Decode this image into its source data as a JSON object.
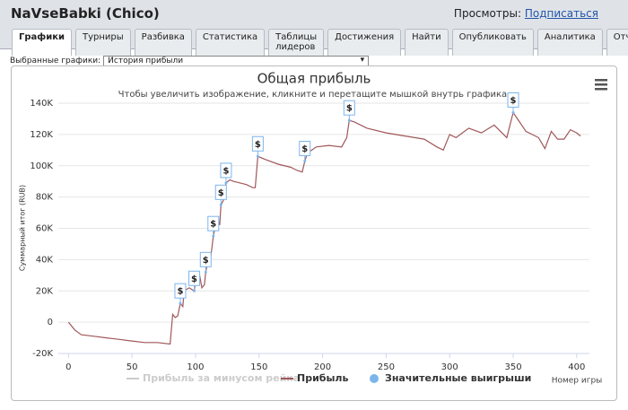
{
  "header": {
    "title": "NaVseBabki (Chico)",
    "views_label": "Просмотры:",
    "subscribe_link": "Подписаться"
  },
  "tabs": [
    "Графики",
    "Турниры",
    "Разбивка",
    "Статистика",
    "Таблицы лидеров",
    "Достижения",
    "Найти",
    "Опубликовать",
    "Аналитика",
    "Отчёты"
  ],
  "selector": {
    "label": "Выбранные графики:",
    "value": "История прибыли"
  },
  "chart_data": {
    "type": "line",
    "title": "Общая прибыль",
    "subtitle": "Чтобы увеличить изображение, кликните и перетащите мышкой внутрь графика.",
    "y_label": "Суммарный итог (RUB)",
    "x_label": "Номер игры",
    "xlim": [
      -8,
      410
    ],
    "xticks": [
      0,
      50,
      100,
      150,
      200,
      250,
      300,
      350,
      400
    ],
    "ylim": [
      -20000,
      140000
    ],
    "yticks": [
      {
        "value": -20000,
        "label": "-20K"
      },
      0,
      {
        "value": 20000,
        "label": "20K"
      },
      {
        "value": 40000,
        "label": "40K"
      },
      {
        "value": 60000,
        "label": "60K"
      },
      {
        "value": 80000,
        "label": "80K"
      },
      {
        "value": 100000,
        "label": "100K"
      },
      {
        "value": 120000,
        "label": "120K"
      },
      {
        "value": 140000,
        "label": "140K"
      }
    ],
    "grid": true,
    "series": [
      {
        "name": "Прибыль за минусом рейка",
        "color": "#cccccc",
        "visible": false
      },
      {
        "name": "Прибыль",
        "color": "#a0575a",
        "x": [
          0,
          5,
          10,
          20,
          30,
          40,
          50,
          60,
          70,
          80,
          82,
          84,
          86,
          88,
          90,
          91,
          95,
          99,
          100,
          103,
          105,
          107,
          108,
          110,
          112,
          114,
          116,
          118,
          119,
          120,
          122,
          124,
          127,
          130,
          135,
          140,
          145,
          147,
          149,
          155,
          165,
          175,
          180,
          184,
          186,
          188,
          195,
          205,
          215,
          219,
          221,
          225,
          235,
          250,
          265,
          280,
          290,
          295,
          300,
          305,
          315,
          325,
          335,
          345,
          350,
          355,
          360,
          370,
          375,
          380,
          385,
          390,
          395,
          400,
          403
        ],
        "values": [
          0,
          -5000,
          -8000,
          -9000,
          -10000,
          -11000,
          -12000,
          -13000,
          -13000,
          -14000,
          5000,
          3000,
          4000,
          12000,
          10000,
          20000,
          22000,
          20000,
          27000,
          31000,
          22000,
          24000,
          32000,
          40000,
          42000,
          55000,
          63000,
          65000,
          62000,
          75000,
          78000,
          89000,
          91000,
          90000,
          89000,
          88000,
          86000,
          86000,
          106000,
          104000,
          101000,
          99000,
          97000,
          96000,
          103000,
          108000,
          112000,
          113000,
          112000,
          118000,
          129000,
          128000,
          124000,
          121000,
          119000,
          117000,
          112000,
          110000,
          120000,
          118000,
          124000,
          121000,
          126000,
          118000,
          134000,
          128000,
          122000,
          118000,
          111000,
          122000,
          117000,
          117000,
          123000,
          121000,
          119000
        ]
      },
      {
        "name": "Значительные выигрыши",
        "color": "#7cb5ec",
        "marker_label": "$",
        "x": [
          88,
          99,
          108,
          114,
          120,
          124,
          149,
          186,
          221,
          350
        ],
        "values": [
          12000,
          20000,
          32000,
          55000,
          75000,
          89000,
          106000,
          103000,
          129000,
          134000
        ]
      }
    ]
  }
}
